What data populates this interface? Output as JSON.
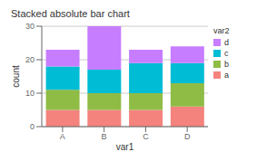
{
  "chart_data": {
    "type": "bar",
    "stacked": true,
    "title": "Stacked absolute bar chart",
    "x_label": "var1",
    "y_label": "count",
    "legend_title": "var2",
    "legend": "right",
    "grid": true,
    "categories": [
      "A",
      "B",
      "C",
      "D"
    ],
    "series": [
      {
        "name": "a",
        "color": "#F4837D",
        "values": [
          5,
          5,
          5,
          6
        ]
      },
      {
        "name": "b",
        "color": "#8FBC45",
        "values": [
          6,
          5,
          5,
          7
        ]
      },
      {
        "name": "c",
        "color": "#00BCD4",
        "values": [
          7,
          7,
          9,
          6
        ]
      },
      {
        "name": "d",
        "color": "#C77DFF",
        "values": [
          5,
          13,
          4,
          5
        ]
      }
    ],
    "ylim": [
      0,
      30
    ],
    "yticks": [
      0,
      10,
      20,
      30
    ]
  }
}
